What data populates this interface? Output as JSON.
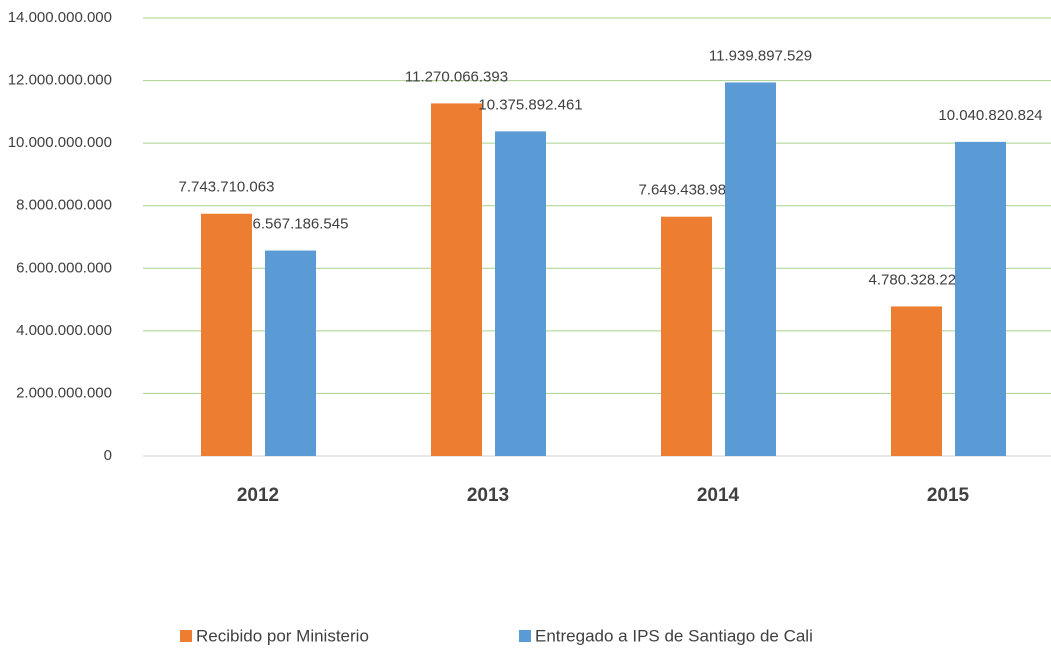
{
  "chart_data": {
    "type": "bar",
    "categories": [
      "2012",
      "2013",
      "2014",
      "2015"
    ],
    "series": [
      {
        "name": "Recibido por Ministerio",
        "color": "#ed7d31",
        "values": [
          7743710063,
          11270066393,
          7649438985,
          4780328224
        ],
        "value_labels": [
          "7.743.710.063",
          "11.270.066.393",
          "7.649.438.985",
          "4.780.328.224"
        ]
      },
      {
        "name": "Entregado a IPS de Santiago de Cali",
        "color": "#5b9bd5",
        "values": [
          6567186545,
          10375892461,
          11939897529,
          10040820824
        ],
        "value_labels": [
          "6.567.186.545",
          "10.375.892.461",
          "11.939.897.529",
          "10.040.820.824"
        ]
      }
    ],
    "ylim": [
      0,
      14000000000
    ],
    "yticks": [
      0,
      {
        "value": 2000000000,
        "label": "2.000.000.000"
      },
      {
        "value": 4000000000,
        "label": "4.000.000.000"
      },
      {
        "value": 6000000000,
        "label": "6.000.000.000"
      },
      {
        "value": 8000000000,
        "label": "8.000.000.000"
      },
      {
        "value": 10000000000,
        "label": "10.000.000.000"
      },
      {
        "value": 12000000000,
        "label": "12.000.000.000"
      },
      {
        "value": 14000000000,
        "label": "14.000.000.000"
      }
    ],
    "grid": true,
    "legend": "bottom"
  }
}
